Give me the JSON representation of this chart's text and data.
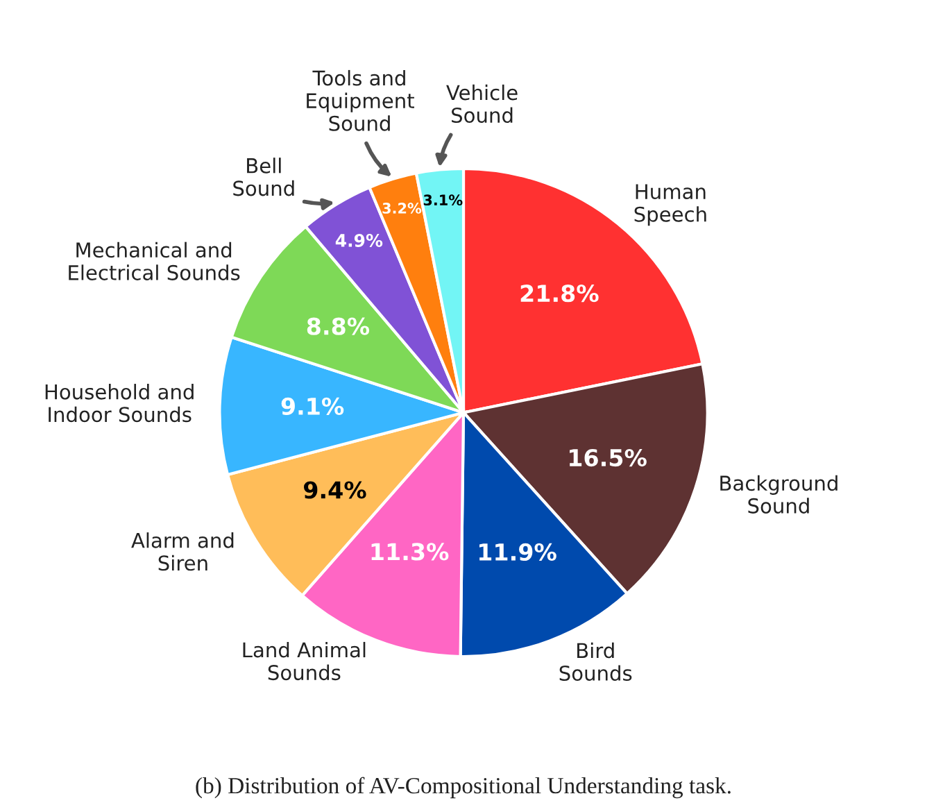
{
  "chart_data": {
    "type": "pie",
    "categories": [
      "Human\nSpeech",
      "Background\nSound",
      "Bird\nSounds",
      "Land Animal\nSounds",
      "Alarm and\nSiren",
      "Household and\nIndoor Sounds",
      "Mechanical and\nElectrical Sounds",
      "Bell\nSound",
      "Tools and\nEquipment\nSound",
      "Vehicle\nSound"
    ],
    "values": [
      21.8,
      16.5,
      11.9,
      11.3,
      9.4,
      9.1,
      8.8,
      4.9,
      3.2,
      3.1
    ],
    "colors": [
      "#ff3131",
      "#5e3232",
      "#004aad",
      "#ff66c4",
      "#ffbd59",
      "#38b6ff",
      "#7ed957",
      "#8052d6",
      "#ff7f0e",
      "#72f5f5"
    ],
    "value_labels": [
      "21.8%",
      "16.5%",
      "11.9%",
      "11.3%",
      "9.4%",
      "9.1%",
      "8.8%",
      "4.9%",
      "3.2%",
      "3.1%"
    ],
    "annotations": [
      "(b) Distribution of AV-Compositional Understanding task."
    ]
  }
}
